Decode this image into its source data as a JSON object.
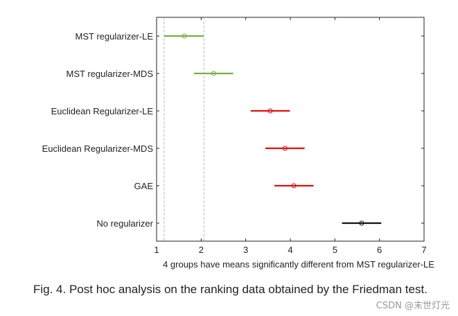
{
  "chart_data": {
    "type": "interval",
    "xlabel": "4 groups have means significantly different from MST regularizer-LE",
    "xlim": [
      1,
      7
    ],
    "xticks": [
      1,
      2,
      3,
      4,
      5,
      6,
      7
    ],
    "reference_lines": [
      1.17,
      2.06
    ],
    "groups": [
      {
        "label": "MST regularizer-LE",
        "mean": 1.62,
        "low": 1.17,
        "high": 2.06,
        "color": "#77b041"
      },
      {
        "label": "MST regularizer-MDS",
        "mean": 2.28,
        "low": 1.84,
        "high": 2.72,
        "color": "#77b041"
      },
      {
        "label": "Euclidean Regularizer-LE",
        "mean": 3.55,
        "low": 3.11,
        "high": 3.99,
        "color": "#e01010"
      },
      {
        "label": "Euclidean Regularizer-MDS",
        "mean": 3.88,
        "low": 3.44,
        "high": 4.32,
        "color": "#e01010"
      },
      {
        "label": "GAE",
        "mean": 4.08,
        "low": 3.64,
        "high": 4.52,
        "color": "#e01010"
      },
      {
        "label": "No regularizer",
        "mean": 5.6,
        "low": 5.16,
        "high": 6.04,
        "color": "#111111"
      }
    ]
  },
  "caption": "Fig. 4. Post hoc analysis on the ranking data obtained by the Friedman test.",
  "watermark": "CSDN @末世灯光"
}
